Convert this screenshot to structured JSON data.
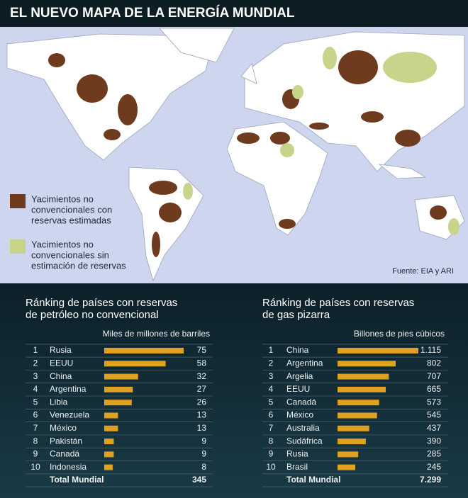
{
  "header": {
    "title": "EL NUEVO MAPA DE LA ENERGÍA MUNDIAL"
  },
  "map": {
    "legend": [
      {
        "color": "#6e3b1e",
        "lines": [
          "Yacimientos no",
          "convencionales con",
          "reservas estimadas"
        ]
      },
      {
        "color": "#c8d48a",
        "lines": [
          "Yacimientos no",
          "convencionales sin",
          "estimación de reservas"
        ]
      }
    ],
    "source": "Fuente: EIA y ARI"
  },
  "chart_data": [
    {
      "type": "bar",
      "title": [
        "Ránking de países con reservas",
        "de petróleo no convencional"
      ],
      "unit": "Miles de millones de barriles",
      "color": "#e0a020",
      "ranks": [
        "1",
        "2",
        "3",
        "4",
        "5",
        "6",
        "7",
        "8",
        "9",
        "10"
      ],
      "categories": [
        "Rusia",
        "EEUU",
        "China",
        "Argentina",
        "Libia",
        "Venezuela",
        "México",
        "Pakistán",
        "Canadá",
        "Indonesia"
      ],
      "values": [
        75,
        58,
        32,
        27,
        26,
        13,
        13,
        9,
        9,
        8
      ],
      "total_label": "Total Mundial",
      "total": 345
    },
    {
      "type": "bar",
      "title": [
        "Ránking de países con reservas",
        "de gas pizarra"
      ],
      "unit": "Billones de pies cúbicos",
      "color": "#e0a020",
      "ranks": [
        "1",
        "2",
        "3",
        "4",
        "5",
        "6",
        "7",
        "8",
        "9",
        "10"
      ],
      "categories": [
        "China",
        "Argentina",
        "Argelia",
        "EEUU",
        "Canadá",
        "México",
        "Australia",
        "Sudáfrica",
        "Rusia",
        "Brasil"
      ],
      "values": [
        1115,
        802,
        707,
        665,
        573,
        545,
        437,
        390,
        285,
        245
      ],
      "value_labels": [
        "1.115",
        "802",
        "707",
        "665",
        "573",
        "545",
        "437",
        "390",
        "285",
        "245"
      ],
      "total_label": "Total Mundial",
      "total": {
        "value": 7299,
        "label": "7.299"
      }
    }
  ]
}
